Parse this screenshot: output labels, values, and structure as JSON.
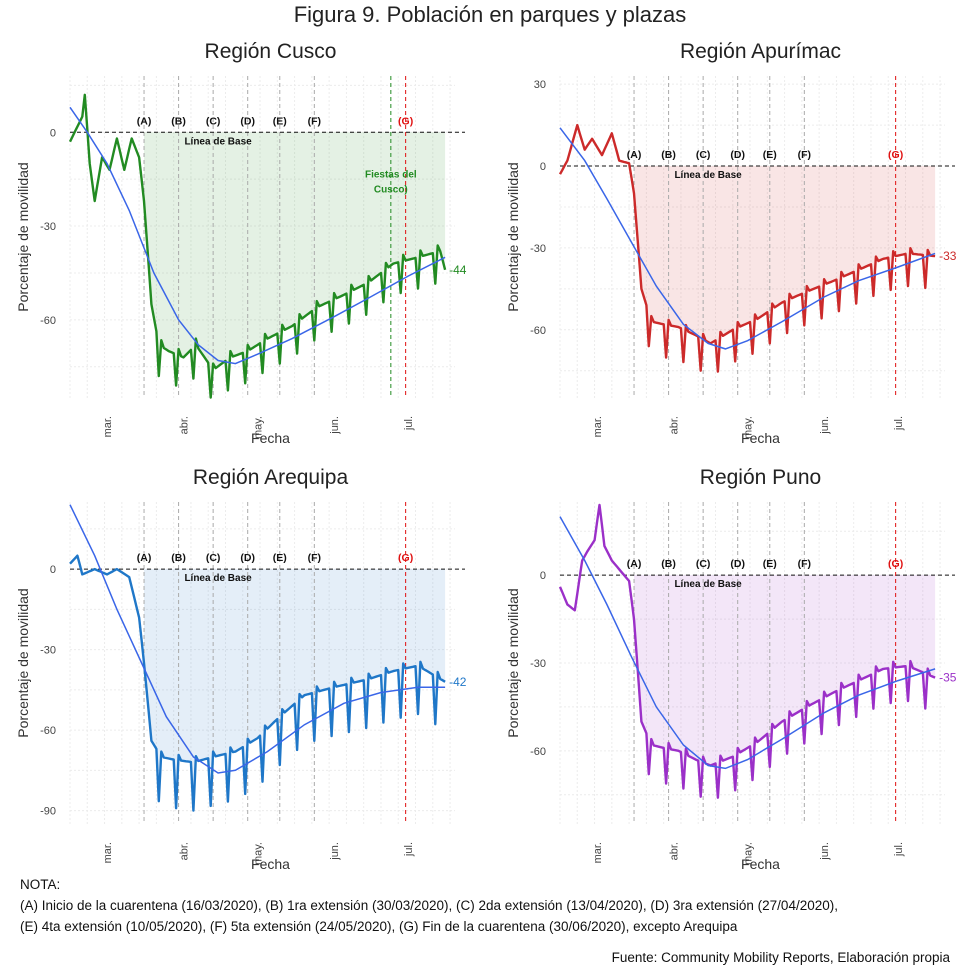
{
  "figure_title": "Figura 9. Población en parques y plazas",
  "notes": {
    "heading": "NOTA:",
    "line1": "(A) Inicio de la cuarentena (16/03/2020), (B) 1ra extensión (30/03/2020), (C) 2da extensión (13/04/2020), (D) 3ra extensión (27/04/2020),",
    "line2": "(E) 4ta extensión (10/05/2020), (F) 5ta extensión (24/05/2020), (G) Fin de la cuarentena (30/06/2020), excepto Arequipa"
  },
  "source": "Fuente: Community Mobility Reports, Elaboración propia",
  "colors": {
    "cusco": "#228b22",
    "apurimac": "#cc2a2a",
    "arequipa": "#1f77c8",
    "puno": "#9b30c8",
    "trend": "#3a66e8",
    "event_line": "#aaaaaa",
    "quarantine_end": "#e01010"
  },
  "chart_data": [
    {
      "type": "line",
      "id": "cusco",
      "title": "Región Cusco",
      "xlabel": "Fecha",
      "ylabel": "Porcentaje de movilidad",
      "x_range": [
        "2020-02-15",
        "2020-07-20"
      ],
      "ylim": [
        -85,
        18
      ],
      "yticks": [
        0,
        -30,
        -60
      ],
      "xticks": [
        {
          "date": "2020-03-01",
          "label": "mar."
        },
        {
          "date": "2020-04-01",
          "label": "abr."
        },
        {
          "date": "2020-05-01",
          "label": "may."
        },
        {
          "date": "2020-06-01",
          "label": "jun."
        },
        {
          "date": "2020-07-01",
          "label": "jul."
        }
      ],
      "baseline_label": "Línea de Base",
      "end_label": "-44",
      "events": [
        {
          "label": "(A)",
          "date": "2020-03-16"
        },
        {
          "label": "(B)",
          "date": "2020-03-30"
        },
        {
          "label": "(C)",
          "date": "2020-04-13"
        },
        {
          "label": "(D)",
          "date": "2020-04-27"
        },
        {
          "label": "(E)",
          "date": "2020-05-10"
        },
        {
          "label": "(F)",
          "date": "2020-05-24"
        },
        {
          "label": "(G)",
          "date": "2020-06-30",
          "red": true
        }
      ],
      "extra_event": {
        "date": "2020-06-24",
        "label_line1": "Fiestas del",
        "label_line2": "Cusco)"
      },
      "series_anchor": [
        [
          "2020-02-15",
          -3
        ],
        [
          "2020-02-20",
          5
        ],
        [
          "2020-02-21",
          12
        ],
        [
          "2020-02-23",
          -10
        ],
        [
          "2020-02-25",
          -22
        ],
        [
          "2020-02-28",
          -8
        ],
        [
          "2020-03-02",
          -12
        ],
        [
          "2020-03-05",
          -2
        ],
        [
          "2020-03-08",
          -12
        ],
        [
          "2020-03-11",
          -2
        ],
        [
          "2020-03-14",
          -8
        ],
        [
          "2020-03-16",
          -22
        ],
        [
          "2020-03-19",
          -55
        ],
        [
          "2020-03-22",
          -68
        ],
        [
          "2020-03-26",
          -70
        ],
        [
          "2020-04-01",
          -72
        ],
        [
          "2020-04-06",
          -68
        ],
        [
          "2020-04-13",
          -76
        ],
        [
          "2020-04-20",
          -72
        ],
        [
          "2020-04-27",
          -70
        ],
        [
          "2020-05-05",
          -66
        ],
        [
          "2020-05-15",
          -62
        ],
        [
          "2020-05-25",
          -56
        ],
        [
          "2020-06-05",
          -52
        ],
        [
          "2020-06-15",
          -48
        ],
        [
          "2020-06-25",
          -42
        ],
        [
          "2020-07-05",
          -40
        ],
        [
          "2020-07-14",
          -38
        ],
        [
          "2020-07-16",
          -44
        ]
      ],
      "weekly_dip": 10,
      "trend": [
        [
          "2020-02-15",
          8
        ],
        [
          "2020-02-22",
          0
        ],
        [
          "2020-03-01",
          -10
        ],
        [
          "2020-03-10",
          -25
        ],
        [
          "2020-03-20",
          -45
        ],
        [
          "2020-03-30",
          -60
        ],
        [
          "2020-04-07",
          -68
        ],
        [
          "2020-04-15",
          -73
        ],
        [
          "2020-04-22",
          -74
        ],
        [
          "2020-05-01",
          -71
        ],
        [
          "2020-05-15",
          -66
        ],
        [
          "2020-06-01",
          -59
        ],
        [
          "2020-06-15",
          -53
        ],
        [
          "2020-07-01",
          -46
        ],
        [
          "2020-07-16",
          -40
        ]
      ]
    },
    {
      "type": "line",
      "id": "apurimac",
      "title": "Región Apurímac",
      "xlabel": "Fecha",
      "ylabel": "Porcentaje de movilidad",
      "x_range": [
        "2020-02-15",
        "2020-07-20"
      ],
      "ylim": [
        -85,
        33
      ],
      "yticks": [
        30,
        0,
        -30,
        -60
      ],
      "xticks": [
        {
          "date": "2020-03-01",
          "label": "mar."
        },
        {
          "date": "2020-04-01",
          "label": "abr."
        },
        {
          "date": "2020-05-01",
          "label": "may."
        },
        {
          "date": "2020-06-01",
          "label": "jun."
        },
        {
          "date": "2020-07-01",
          "label": "jul."
        }
      ],
      "baseline_label": "Línea de Base",
      "end_label": "-33",
      "events": [
        {
          "label": "(A)",
          "date": "2020-03-16"
        },
        {
          "label": "(B)",
          "date": "2020-03-30"
        },
        {
          "label": "(C)",
          "date": "2020-04-13"
        },
        {
          "label": "(D)",
          "date": "2020-04-27"
        },
        {
          "label": "(E)",
          "date": "2020-05-10"
        },
        {
          "label": "(F)",
          "date": "2020-05-24"
        },
        {
          "label": "(G)",
          "date": "2020-06-30",
          "red": true
        }
      ],
      "series_anchor": [
        [
          "2020-02-15",
          -3
        ],
        [
          "2020-02-18",
          2
        ],
        [
          "2020-02-22",
          15
        ],
        [
          "2020-02-25",
          6
        ],
        [
          "2020-02-28",
          10
        ],
        [
          "2020-03-03",
          4
        ],
        [
          "2020-03-07",
          12
        ],
        [
          "2020-03-10",
          2
        ],
        [
          "2020-03-14",
          1
        ],
        [
          "2020-03-16",
          -10
        ],
        [
          "2020-03-19",
          -45
        ],
        [
          "2020-03-23",
          -57
        ],
        [
          "2020-03-28",
          -58
        ],
        [
          "2020-04-03",
          -59
        ],
        [
          "2020-04-10",
          -62
        ],
        [
          "2020-04-16",
          -65
        ],
        [
          "2020-04-25",
          -60
        ],
        [
          "2020-05-05",
          -56
        ],
        [
          "2020-05-15",
          -50
        ],
        [
          "2020-05-25",
          -46
        ],
        [
          "2020-06-05",
          -42
        ],
        [
          "2020-06-15",
          -38
        ],
        [
          "2020-06-25",
          -34
        ],
        [
          "2020-07-05",
          -32
        ],
        [
          "2020-07-16",
          -33
        ]
      ],
      "weekly_dip": 12,
      "trend": [
        [
          "2020-02-15",
          14
        ],
        [
          "2020-02-25",
          2
        ],
        [
          "2020-03-05",
          -12
        ],
        [
          "2020-03-15",
          -28
        ],
        [
          "2020-03-25",
          -44
        ],
        [
          "2020-04-05",
          -58
        ],
        [
          "2020-04-15",
          -65
        ],
        [
          "2020-04-22",
          -67
        ],
        [
          "2020-05-01",
          -64
        ],
        [
          "2020-05-15",
          -57
        ],
        [
          "2020-06-01",
          -48
        ],
        [
          "2020-06-15",
          -42
        ],
        [
          "2020-07-01",
          -37
        ],
        [
          "2020-07-16",
          -32
        ]
      ]
    },
    {
      "type": "line",
      "id": "arequipa",
      "title": "Región Arequipa",
      "xlabel": "Fecha",
      "ylabel": "Porcentaje de movilidad",
      "x_range": [
        "2020-02-15",
        "2020-07-20"
      ],
      "ylim": [
        -95,
        25
      ],
      "yticks": [
        0,
        -30,
        -60,
        -90
      ],
      "xticks": [
        {
          "date": "2020-03-01",
          "label": "mar."
        },
        {
          "date": "2020-04-01",
          "label": "abr."
        },
        {
          "date": "2020-05-01",
          "label": "may."
        },
        {
          "date": "2020-06-01",
          "label": "jun."
        },
        {
          "date": "2020-07-01",
          "label": "jul."
        }
      ],
      "baseline_label": "Línea de Base",
      "end_label": "-42",
      "events": [
        {
          "label": "(A)",
          "date": "2020-03-16"
        },
        {
          "label": "(B)",
          "date": "2020-03-30"
        },
        {
          "label": "(C)",
          "date": "2020-04-13"
        },
        {
          "label": "(D)",
          "date": "2020-04-27"
        },
        {
          "label": "(E)",
          "date": "2020-05-10"
        },
        {
          "label": "(F)",
          "date": "2020-05-24"
        },
        {
          "label": "(G)",
          "date": "2020-06-30",
          "red": true
        }
      ],
      "series_anchor": [
        [
          "2020-02-15",
          2
        ],
        [
          "2020-02-18",
          5
        ],
        [
          "2020-02-20",
          -2
        ],
        [
          "2020-02-25",
          0
        ],
        [
          "2020-03-01",
          -2
        ],
        [
          "2020-03-05",
          0
        ],
        [
          "2020-03-10",
          -3
        ],
        [
          "2020-03-14",
          -18
        ],
        [
          "2020-03-16",
          -35
        ],
        [
          "2020-03-19",
          -64
        ],
        [
          "2020-03-23",
          -70
        ],
        [
          "2020-03-28",
          -71
        ],
        [
          "2020-04-05",
          -72
        ],
        [
          "2020-04-13",
          -70
        ],
        [
          "2020-04-22",
          -68
        ],
        [
          "2020-05-01",
          -63
        ],
        [
          "2020-05-10",
          -55
        ],
        [
          "2020-05-20",
          -47
        ],
        [
          "2020-06-01",
          -44
        ],
        [
          "2020-06-15",
          -41
        ],
        [
          "2020-06-25",
          -38
        ],
        [
          "2020-07-05",
          -36
        ],
        [
          "2020-07-16",
          -42
        ]
      ],
      "weekly_dip": 18,
      "trend": [
        [
          "2020-02-15",
          24
        ],
        [
          "2020-02-25",
          5
        ],
        [
          "2020-03-05",
          -15
        ],
        [
          "2020-03-15",
          -35
        ],
        [
          "2020-03-25",
          -55
        ],
        [
          "2020-04-05",
          -70
        ],
        [
          "2020-04-15",
          -76
        ],
        [
          "2020-04-22",
          -75
        ],
        [
          "2020-05-05",
          -68
        ],
        [
          "2020-05-20",
          -58
        ],
        [
          "2020-06-05",
          -50
        ],
        [
          "2020-06-20",
          -46
        ],
        [
          "2020-07-05",
          -44
        ],
        [
          "2020-07-16",
          -44
        ]
      ]
    },
    {
      "type": "line",
      "id": "puno",
      "title": "Región Puno",
      "xlabel": "Fecha",
      "ylabel": "Porcentaje de movilidad",
      "x_range": [
        "2020-02-15",
        "2020-07-20"
      ],
      "ylim": [
        -85,
        25
      ],
      "yticks": [
        0,
        -30,
        -60
      ],
      "xticks": [
        {
          "date": "2020-03-01",
          "label": "mar."
        },
        {
          "date": "2020-04-01",
          "label": "abr."
        },
        {
          "date": "2020-05-01",
          "label": "may."
        },
        {
          "date": "2020-06-01",
          "label": "jun."
        },
        {
          "date": "2020-07-01",
          "label": "jul."
        }
      ],
      "baseline_label": "Línea de Base",
      "end_label": "-35",
      "events": [
        {
          "label": "(A)",
          "date": "2020-03-16"
        },
        {
          "label": "(B)",
          "date": "2020-03-30"
        },
        {
          "label": "(C)",
          "date": "2020-04-13"
        },
        {
          "label": "(D)",
          "date": "2020-04-27"
        },
        {
          "label": "(E)",
          "date": "2020-05-10"
        },
        {
          "label": "(F)",
          "date": "2020-05-24"
        },
        {
          "label": "(G)",
          "date": "2020-06-30",
          "red": true
        }
      ],
      "series_anchor": [
        [
          "2020-02-15",
          -4
        ],
        [
          "2020-02-18",
          -10
        ],
        [
          "2020-02-21",
          -12
        ],
        [
          "2020-02-24",
          5
        ],
        [
          "2020-02-26",
          8
        ],
        [
          "2020-02-29",
          12
        ],
        [
          "2020-03-02",
          24
        ],
        [
          "2020-03-04",
          10
        ],
        [
          "2020-03-07",
          5
        ],
        [
          "2020-03-10",
          2
        ],
        [
          "2020-03-14",
          -2
        ],
        [
          "2020-03-16",
          -15
        ],
        [
          "2020-03-19",
          -50
        ],
        [
          "2020-03-23",
          -58
        ],
        [
          "2020-03-28",
          -59
        ],
        [
          "2020-04-03",
          -60
        ],
        [
          "2020-04-10",
          -63
        ],
        [
          "2020-04-16",
          -65
        ],
        [
          "2020-04-25",
          -62
        ],
        [
          "2020-05-05",
          -57
        ],
        [
          "2020-05-15",
          -50
        ],
        [
          "2020-05-25",
          -45
        ],
        [
          "2020-06-05",
          -40
        ],
        [
          "2020-06-15",
          -36
        ],
        [
          "2020-06-25",
          -32
        ],
        [
          "2020-07-05",
          -31
        ],
        [
          "2020-07-16",
          -35
        ]
      ],
      "weekly_dip": 12,
      "trend": [
        [
          "2020-02-15",
          20
        ],
        [
          "2020-02-25",
          5
        ],
        [
          "2020-03-05",
          -10
        ],
        [
          "2020-03-15",
          -28
        ],
        [
          "2020-03-25",
          -45
        ],
        [
          "2020-04-05",
          -58
        ],
        [
          "2020-04-15",
          -65
        ],
        [
          "2020-04-22",
          -66
        ],
        [
          "2020-05-01",
          -63
        ],
        [
          "2020-05-15",
          -56
        ],
        [
          "2020-06-01",
          -47
        ],
        [
          "2020-06-15",
          -41
        ],
        [
          "2020-07-01",
          -36
        ],
        [
          "2020-07-16",
          -32
        ]
      ]
    }
  ]
}
